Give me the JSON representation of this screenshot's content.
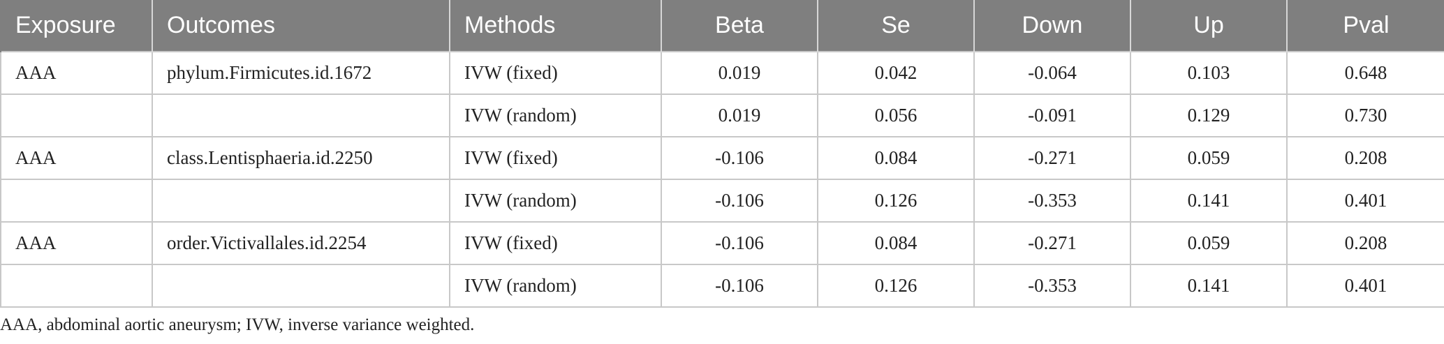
{
  "table": {
    "headers": [
      "Exposure",
      "Outcomes",
      "Methods",
      "Beta",
      "Se",
      "Down",
      "Up",
      "Pval"
    ],
    "rows": [
      [
        "AAA",
        "phylum.Firmicutes.id.1672",
        "IVW (fixed)",
        "0.019",
        "0.042",
        "-0.064",
        "0.103",
        "0.648"
      ],
      [
        "",
        "",
        "IVW (random)",
        "0.019",
        "0.056",
        "-0.091",
        "0.129",
        "0.730"
      ],
      [
        "AAA",
        "class.Lentisphaeria.id.2250",
        "IVW (fixed)",
        "-0.106",
        "0.084",
        "-0.271",
        "0.059",
        "0.208"
      ],
      [
        "",
        "",
        "IVW (random)",
        "-0.106",
        "0.126",
        "-0.353",
        "0.141",
        "0.401"
      ],
      [
        "AAA",
        "order.Victivallales.id.2254",
        "IVW (fixed)",
        "-0.106",
        "0.084",
        "-0.271",
        "0.059",
        "0.208"
      ],
      [
        "",
        "",
        "IVW (random)",
        "-0.106",
        "0.126",
        "-0.353",
        "0.141",
        "0.401"
      ]
    ]
  },
  "footnote": "AAA, abdominal aortic aneurysm; IVW, inverse variance weighted.",
  "colors": {
    "header_bg": "#7f7f7f",
    "header_text": "#ffffff",
    "grid": "#c8c8c8",
    "body_text": "#222222"
  }
}
